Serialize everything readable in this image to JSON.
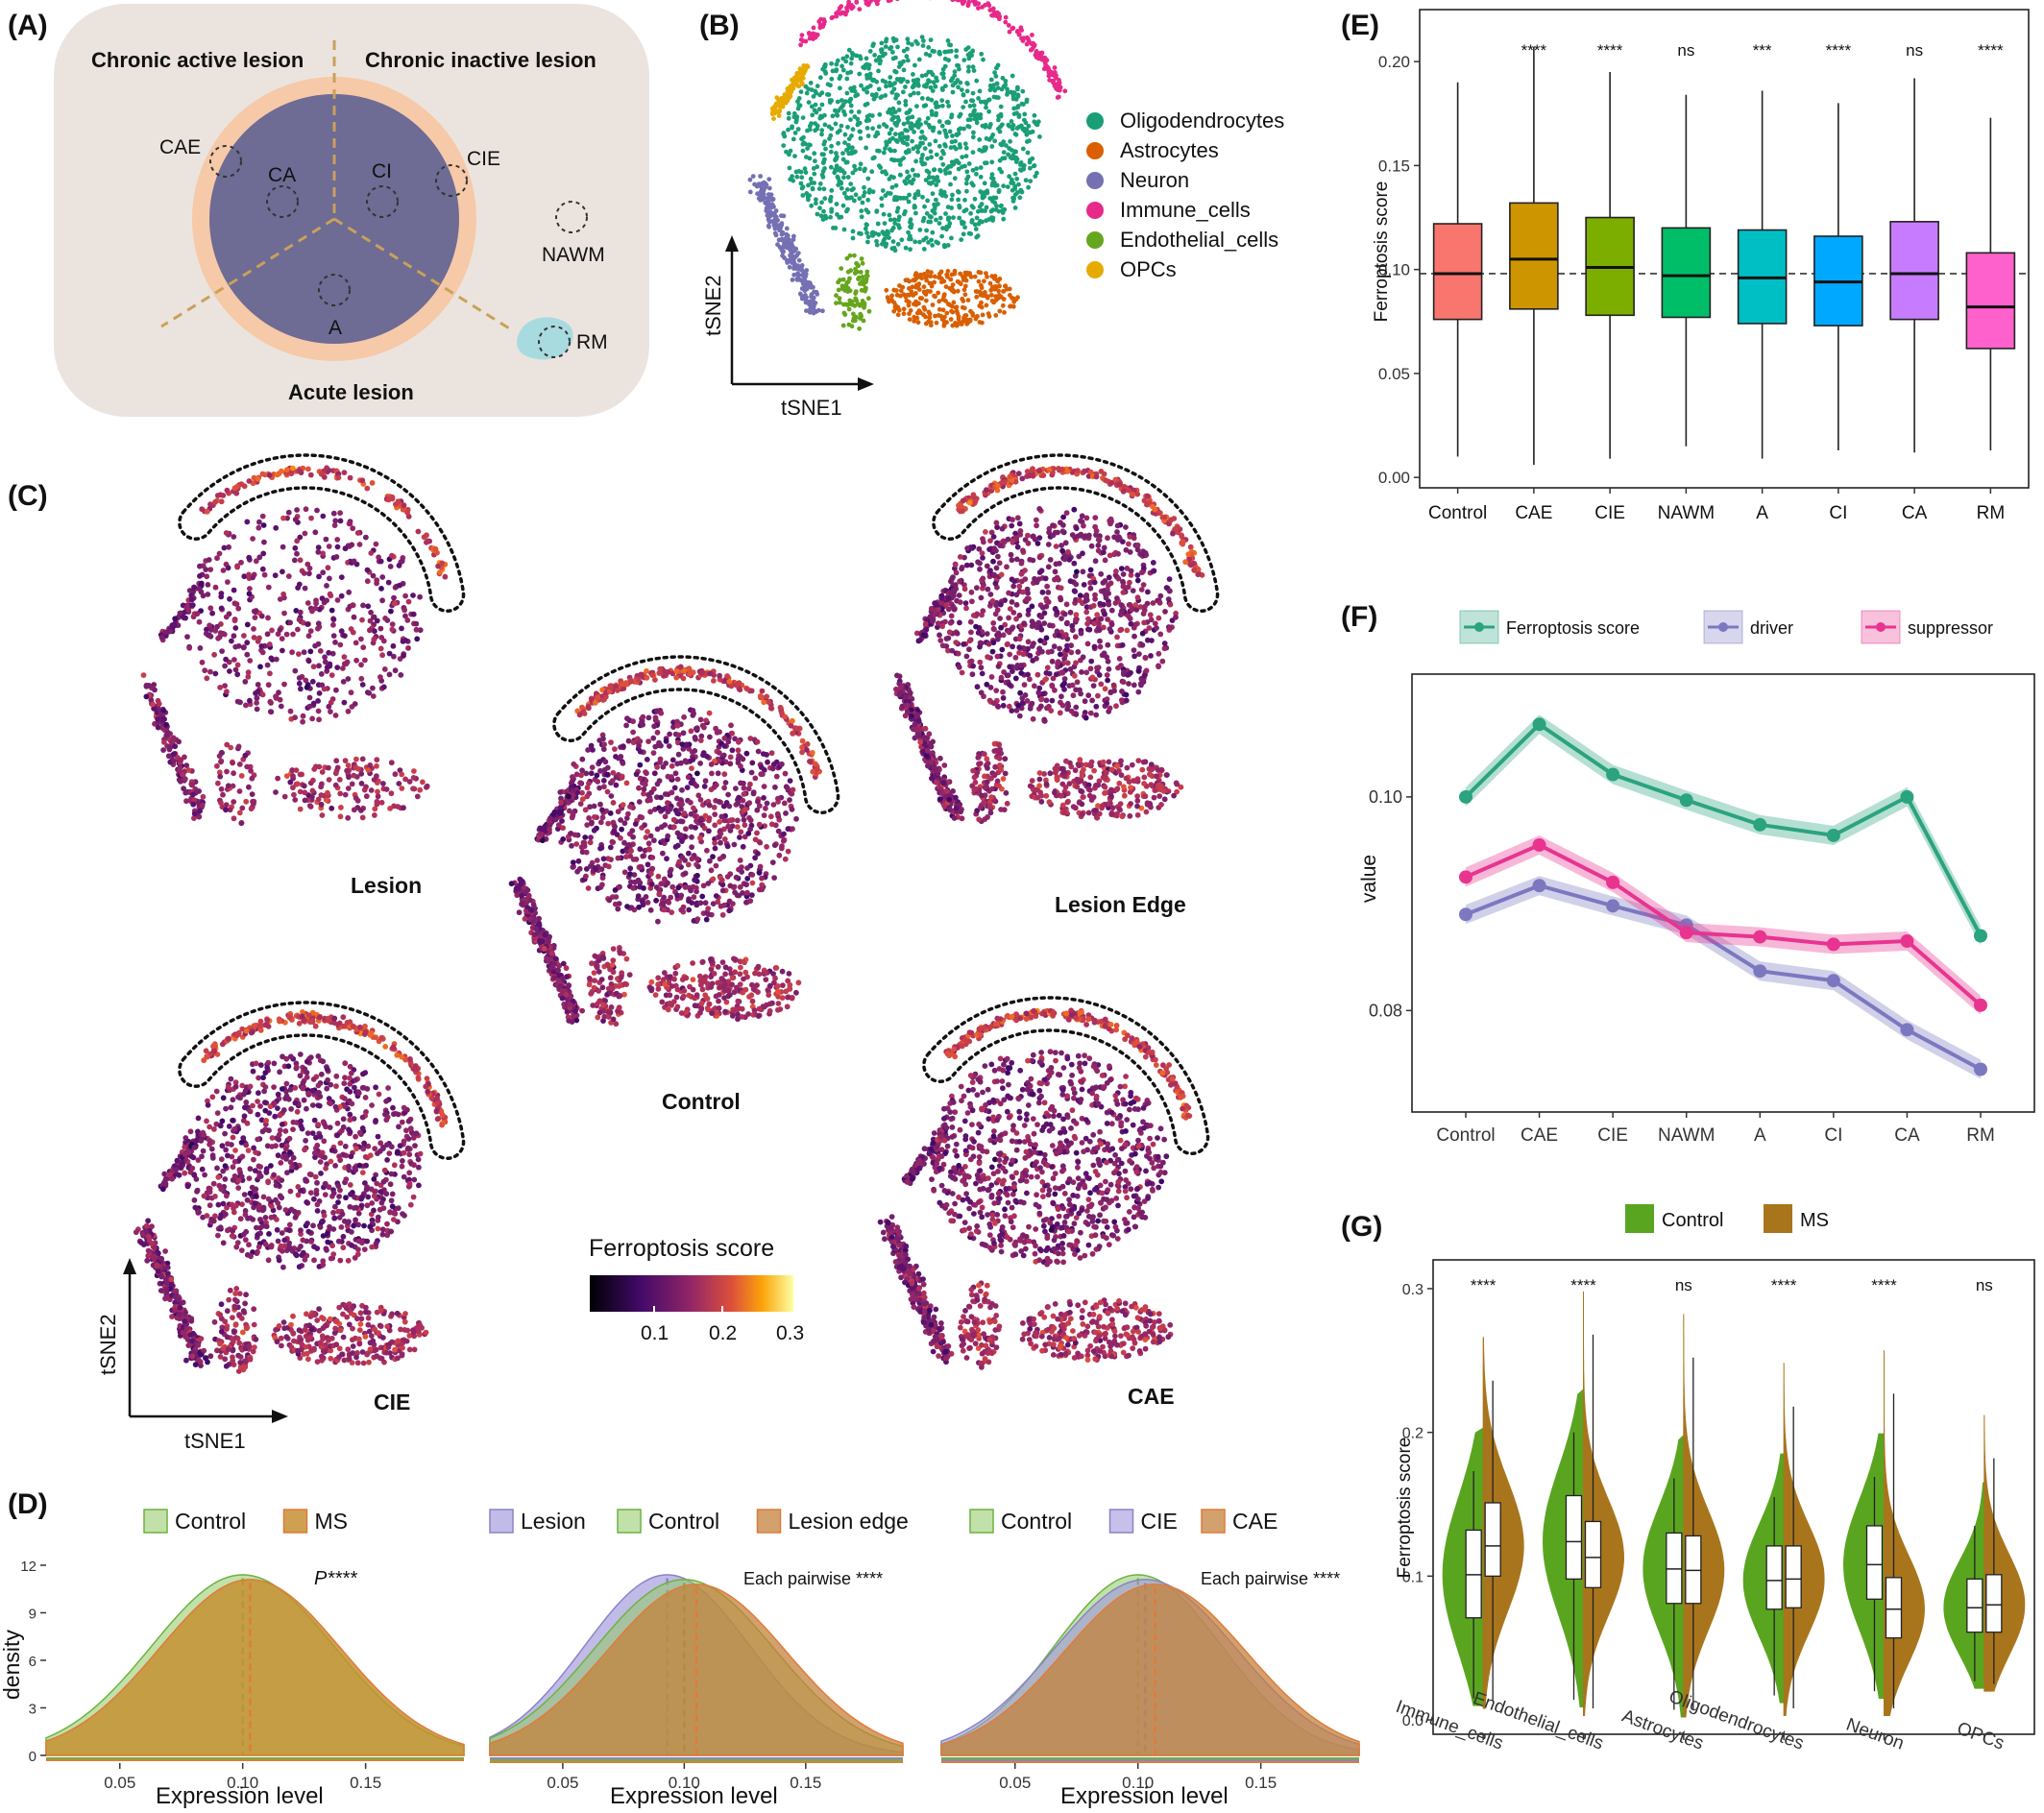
{
  "panels": {
    "A": {
      "label": "(A)",
      "regions": {
        "chronic_active": "Chronic active lesion",
        "chronic_inactive": "Chronic inactive lesion",
        "acute": "Acute lesion"
      },
      "sites": {
        "CAE": "CAE",
        "CA": "CA",
        "CI": "CI",
        "CIE": "CIE",
        "A": "A",
        "NAWM": "NAWM",
        "RM": "RM"
      }
    },
    "B": {
      "label": "(B)",
      "xlabel": "tSNE1",
      "ylabel": "tSNE2",
      "legend": [
        {
          "name": "Oligodendrocytes",
          "color": "#1b9e77"
        },
        {
          "name": "Astrocytes",
          "color": "#d95f02"
        },
        {
          "name": "Neuron",
          "color": "#7570b3"
        },
        {
          "name": "Immune_cells",
          "color": "#e7298a"
        },
        {
          "name": "Endothelial_cells",
          "color": "#66a61e"
        },
        {
          "name": "OPCs",
          "color": "#e6ab02"
        }
      ]
    },
    "C": {
      "label": "(C)",
      "xlabel": "tSNE1",
      "ylabel": "tSNE2",
      "maps": {
        "lesion": "Lesion",
        "lesion_edge": "Lesion Edge",
        "control": "Control",
        "cie": "CIE",
        "cae": "CAE"
      },
      "colorbar": {
        "title": "Ferroptosis  score",
        "ticks": [
          "0.1",
          "0.2",
          "0.3"
        ]
      }
    },
    "D": {
      "label": "(D)",
      "ylabel": "density",
      "xlabel": "Expression level",
      "xticks": [
        "0.05",
        "0.10",
        "0.15"
      ],
      "yticks": [
        "0",
        "3",
        "6",
        "9",
        "12"
      ],
      "plot1": {
        "legend": [
          "Control",
          "MS"
        ],
        "annotation": "P****"
      },
      "plot2": {
        "legend": [
          "Lesion",
          "Control",
          "Lesion edge"
        ],
        "annotation": "Each pairwise ****"
      },
      "plot3": {
        "legend": [
          "Control",
          "CIE",
          "CAE"
        ],
        "annotation": "Each pairwise ****"
      }
    },
    "E": {
      "label": "(E)",
      "ylabel": "Ferroptosis score",
      "yticks": [
        "0.00",
        "0.05",
        "0.10",
        "0.15",
        "0.20"
      ],
      "significance": [
        "",
        "****",
        "****",
        "ns",
        "***",
        "****",
        "ns",
        "****"
      ]
    },
    "F": {
      "label": "(F)",
      "ylabel": "value",
      "yticks": [
        "0.08",
        "0.10"
      ],
      "legend": [
        {
          "name": "Ferroptosis score",
          "color": "#2ba37e"
        },
        {
          "name": "driver",
          "color": "#7b78c0"
        },
        {
          "name": "suppressor",
          "color": "#e8348f"
        }
      ]
    },
    "G": {
      "label": "(G)",
      "ylabel": "Ferroptosis score",
      "yticks": [
        "0.0",
        "0.1",
        "0.2",
        "0.3"
      ],
      "legend": [
        {
          "name": "Control",
          "color": "#5aa51f"
        },
        {
          "name": "MS",
          "color": "#a9751c"
        }
      ],
      "significance": [
        "****",
        "****",
        "ns",
        "****",
        "****",
        "ns"
      ]
    }
  },
  "chart_data": [
    {
      "type": "box",
      "panel": "E",
      "categories": [
        "Control",
        "CAE",
        "CIE",
        "NAWM",
        "A",
        "CI",
        "CA",
        "RM"
      ],
      "colors": [
        "#f8766d",
        "#cd9600",
        "#7cae00",
        "#00be67",
        "#00bfc4",
        "#00a9ff",
        "#c77cff",
        "#ff61cc"
      ],
      "whisker_low": [
        0.01,
        0.006,
        0.009,
        0.015,
        0.009,
        0.013,
        0.012,
        0.013
      ],
      "q1": [
        0.076,
        0.081,
        0.078,
        0.077,
        0.074,
        0.073,
        0.076,
        0.062
      ],
      "median": [
        0.098,
        0.105,
        0.101,
        0.097,
        0.096,
        0.094,
        0.098,
        0.082
      ],
      "q3": [
        0.122,
        0.132,
        0.125,
        0.12,
        0.119,
        0.116,
        0.123,
        0.108
      ],
      "whisker_high": [
        0.19,
        0.207,
        0.195,
        0.184,
        0.186,
        0.18,
        0.192,
        0.173
      ],
      "reference_line": 0.098,
      "ylim": [
        -0.005,
        0.225
      ]
    },
    {
      "type": "line",
      "panel": "F",
      "categories": [
        "Control",
        "CAE",
        "CIE",
        "NAWM",
        "A",
        "CI",
        "CA",
        "RM"
      ],
      "series": [
        {
          "name": "Ferroptosis score",
          "values": [
            0.1,
            0.1068,
            0.1021,
            0.0997,
            0.0974,
            0.0964,
            0.1,
            0.087
          ]
        },
        {
          "name": "driver",
          "values": [
            0.089,
            0.0917,
            0.0898,
            0.088,
            0.0837,
            0.0828,
            0.0782,
            0.0745
          ]
        },
        {
          "name": "suppressor",
          "values": [
            0.0925,
            0.0955,
            0.092,
            0.0873,
            0.0869,
            0.0862,
            0.0865,
            0.0805
          ]
        }
      ],
      "ylim": [
        0.0705,
        0.1115
      ]
    },
    {
      "type": "violin",
      "panel": "G",
      "categories": [
        "Immune_cells",
        "Endothelial_cells",
        "Astrocytes",
        "Oligodendrocytes",
        "Neuron",
        "OPCs"
      ],
      "series": [
        {
          "name": "Control",
          "median": [
            0.101,
            0.124,
            0.105,
            0.097,
            0.108,
            0.078
          ],
          "q1": [
            0.071,
            0.098,
            0.081,
            0.077,
            0.084,
            0.061
          ],
          "q3": [
            0.132,
            0.156,
            0.13,
            0.121,
            0.135,
            0.098
          ],
          "min": [
            0.01,
            0.009,
            0.002,
            0.012,
            0.015,
            0.022
          ],
          "max": [
            0.203,
            0.23,
            0.198,
            0.185,
            0.199,
            0.165
          ]
        },
        {
          "name": "MS",
          "median": [
            0.121,
            0.113,
            0.104,
            0.098,
            0.077,
            0.08
          ],
          "q1": [
            0.1,
            0.092,
            0.081,
            0.078,
            0.057,
            0.061
          ],
          "q3": [
            0.151,
            0.138,
            0.128,
            0.121,
            0.099,
            0.101
          ],
          "min": [
            0.008,
            0.003,
            0.002,
            0.003,
            0.003,
            0.02
          ],
          "max": [
            0.266,
            0.298,
            0.282,
            0.248,
            0.257,
            0.212
          ]
        }
      ],
      "ylim": [
        -0.01,
        0.32
      ]
    },
    {
      "type": "area",
      "panel": "D",
      "subplots": [
        {
          "legend": [
            "Control",
            "MS"
          ],
          "mean_lines": [
            0.1,
            0.103
          ]
        },
        {
          "legend": [
            "Lesion",
            "Control",
            "Lesion edge"
          ],
          "mean_lines": [
            0.093,
            0.1,
            0.105
          ]
        },
        {
          "legend": [
            "Control",
            "CIE",
            "CAE"
          ],
          "mean_lines": [
            0.1,
            0.103,
            0.107
          ]
        }
      ],
      "xlim": [
        0.02,
        0.19
      ],
      "ylim": [
        0,
        12
      ]
    }
  ]
}
